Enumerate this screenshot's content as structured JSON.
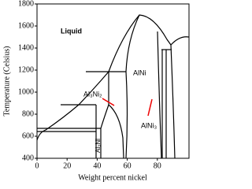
{
  "chart_data": {
    "type": "phase-diagram",
    "xlabel": "Weight percent nickel",
    "ylabel": "Temperature (Celsius)",
    "xlim": [
      0,
      100
    ],
    "xticks": [
      0,
      20,
      40,
      60,
      80
    ],
    "ylim": [
      400,
      1800
    ],
    "yticks": [
      400,
      600,
      800,
      1000,
      1200,
      1400,
      1600,
      1800
    ],
    "annotations": [
      "Liquid",
      "AlNi",
      "Al₃Ni₂",
      "Al₃Ni",
      "AlNi₃"
    ]
  }
}
